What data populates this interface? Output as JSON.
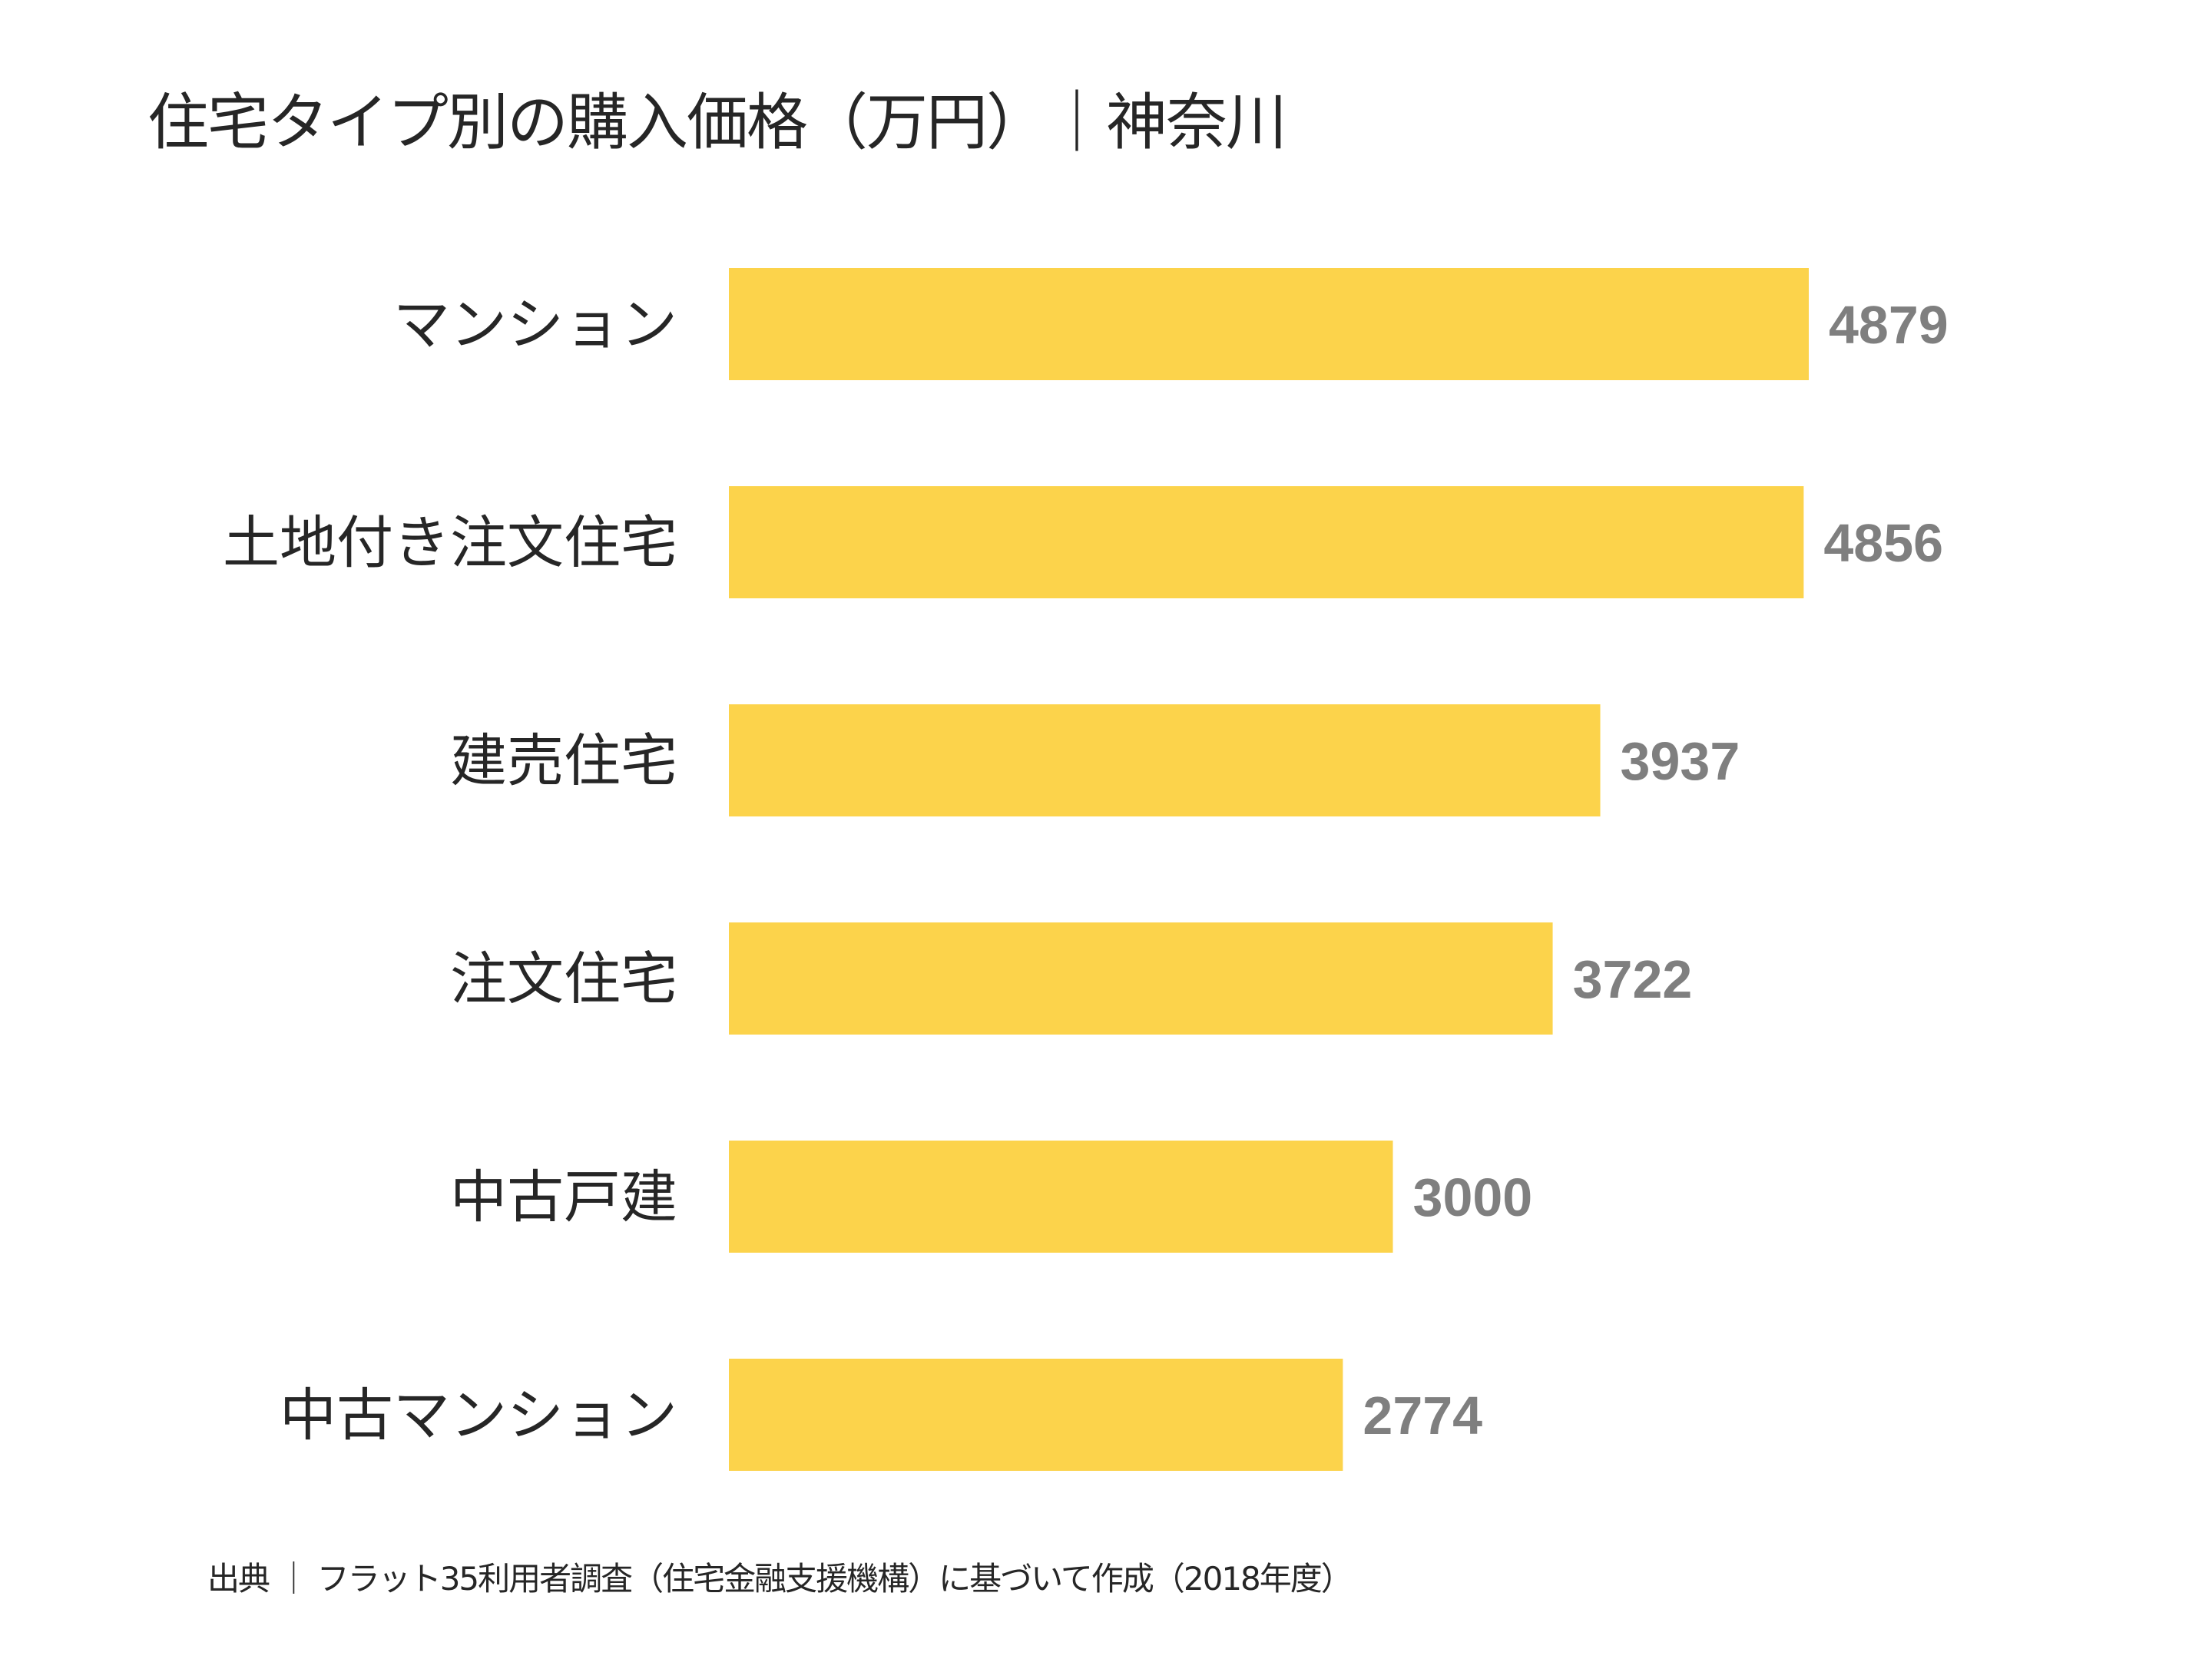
{
  "chart_data": {
    "type": "bar",
    "orientation": "horizontal",
    "title": "住宅タイプ別の購入価格（万円）｜神奈川",
    "categories": [
      "マンション",
      "土地付き注文住宅",
      "建売住宅",
      "注文住宅",
      "中古戸建",
      "中古マンション"
    ],
    "values": [
      4879,
      4856,
      3937,
      3722,
      3000,
      2774
    ],
    "xlabel": "",
    "ylabel": "",
    "xlim": [
      0,
      4879
    ],
    "grid": false,
    "bar_color": "#FCD34B",
    "value_label_color": "#7F7F7F"
  },
  "footnote": "出典 ｜ フラット35利用者調査（住宅金融支援機構）に基づいて作成（2018年度）"
}
